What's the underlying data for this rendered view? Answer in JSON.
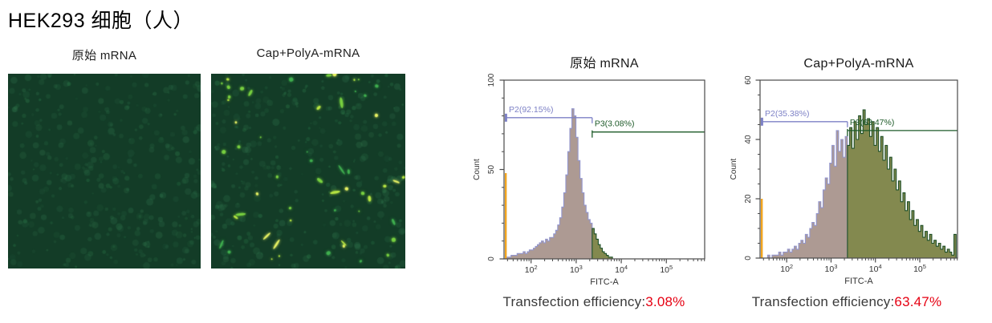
{
  "page": {
    "title": "HEK293 细胞（人）",
    "background": "#ffffff",
    "accent_red": "#e60012"
  },
  "microscopy": {
    "colors": {
      "background": "#133c27",
      "dim_cell": "#3f9361",
      "mid_cell": "#2e7c4b",
      "bright_cells": [
        "#3fae4e",
        "#77cf3f",
        "#b7e542",
        "#e6f063"
      ]
    },
    "panels": [
      {
        "label": "原始 mRNA",
        "seed": 7,
        "dim_cells": 320,
        "mid_cells": 30,
        "bright_cells": 0
      },
      {
        "label": "Cap+PolyA-mRNA",
        "seed": 13,
        "dim_cells": 280,
        "mid_cells": 70,
        "bright_cells": 55
      }
    ]
  },
  "chart_data": [
    {
      "type": "area",
      "title": "原始 mRNA",
      "xlabel": "FITC-A",
      "ylabel": "Count",
      "x_scale": "log10",
      "xlim_log10": [
        1.4,
        5.85
      ],
      "x_tick_exponents": [
        2,
        3,
        4,
        5
      ],
      "ylim": [
        0,
        100
      ],
      "y_major_ticks": [
        0,
        50,
        100
      ],
      "y_minor_step": 10,
      "gate_log10": 3.33,
      "gates": [
        {
          "name": "P2",
          "label": "P2(92.15%)",
          "percent": 92.15,
          "color": "#7d81c6",
          "line_value": 79
        },
        {
          "name": "P3",
          "label": "P3(3.08%)",
          "percent": 3.08,
          "color": "#1d5a28",
          "line_value": 71
        }
      ],
      "edge_spike": {
        "value": 48,
        "color": "#f2a51f"
      },
      "bins": {
        "start_log10": 1.42,
        "step_log10": 0.045,
        "counts": [
          0,
          1,
          1,
          2,
          2,
          2,
          3,
          3,
          3,
          4,
          3,
          4,
          5,
          5,
          6,
          7,
          8,
          9,
          10,
          9,
          11,
          10,
          12,
          12,
          14,
          16,
          19,
          23,
          29,
          37,
          47,
          60,
          73,
          84,
          80,
          68,
          55,
          45,
          37,
          30,
          26,
          22,
          20,
          17,
          14,
          11,
          8,
          6,
          4,
          3,
          2,
          1,
          1,
          0
        ]
      },
      "colors": {
        "fill_left": "#ad9a93",
        "stroke_left": "#9295cd",
        "fill_right": "#83894f",
        "stroke_right": "#1d4f27"
      }
    },
    {
      "type": "area",
      "title": "Cap+PolyA-mRNA",
      "xlabel": "FITC-A",
      "ylabel": "Count",
      "x_scale": "log10",
      "xlim_log10": [
        1.4,
        5.85
      ],
      "x_tick_exponents": [
        2,
        3,
        4,
        5
      ],
      "ylim": [
        0,
        60
      ],
      "y_major_ticks": [
        0,
        20,
        40,
        60
      ],
      "y_minor_step": 5,
      "gate_log10": 3.33,
      "gates": [
        {
          "name": "P2",
          "label": "P2(35.38%)",
          "percent": 35.38,
          "color": "#7d81c6",
          "line_value": 46
        },
        {
          "name": "P3",
          "label": "P3(63.47%)",
          "percent": 63.47,
          "color": "#1d5a28",
          "line_value": 43
        }
      ],
      "edge_spike": {
        "value": 20,
        "color": "#f2a51f"
      },
      "bins": {
        "start_log10": 1.42,
        "step_log10": 0.05,
        "counts": [
          0,
          0,
          0,
          1,
          0,
          1,
          1,
          1,
          2,
          1,
          2,
          2,
          3,
          2,
          3,
          4,
          3,
          5,
          6,
          5,
          8,
          7,
          10,
          12,
          11,
          15,
          19,
          17,
          23,
          27,
          25,
          32,
          38,
          31,
          43,
          36,
          40,
          34,
          41,
          38,
          44,
          37,
          46,
          40,
          48,
          42,
          50,
          45,
          47,
          41,
          46,
          38,
          44,
          36,
          41,
          33,
          38,
          30,
          34,
          26,
          30,
          23,
          26,
          19,
          22,
          16,
          19,
          13,
          16,
          11,
          13,
          9,
          11,
          7,
          9,
          6,
          8,
          5,
          6,
          4,
          5,
          3,
          4,
          2,
          3,
          2,
          1,
          8
        ]
      },
      "colors": {
        "fill_left": "#ad9a93",
        "stroke_left": "#9295cd",
        "fill_right": "#83894f",
        "stroke_right": "#1d4f27"
      }
    }
  ],
  "captions": [
    {
      "label": "Transfection efficiency:",
      "value": "3.08%"
    },
    {
      "label": "Transfection efficiency:",
      "value": "63.47%"
    }
  ]
}
